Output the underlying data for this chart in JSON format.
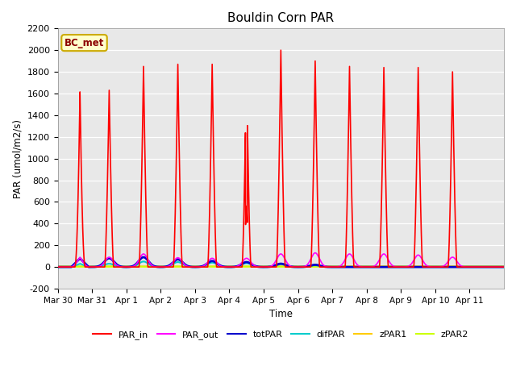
{
  "title": "Bouldin Corn PAR",
  "ylabel": "PAR (umol/m2/s)",
  "xlabel": "Time",
  "ylim": [
    -200,
    2200
  ],
  "yticks": [
    -200,
    0,
    200,
    400,
    600,
    800,
    1000,
    1200,
    1400,
    1600,
    1800,
    2000,
    2200
  ],
  "background_color": "#e8e8e8",
  "legend_label": "BC_met",
  "legend_bg": "#ffffcc",
  "legend_border": "#ccaa00",
  "series_colors": {
    "PAR_in": "#ff0000",
    "PAR_out": "#ff00ff",
    "totPAR": "#0000cc",
    "difPAR": "#00cccc",
    "zPAR1": "#ffcc00",
    "zPAR2": "#ccff00"
  },
  "days": [
    "Mar 30",
    "Mar 31",
    "Apr 1",
    "Apr 2",
    "Apr 3",
    "Apr 4",
    "Apr 5",
    "Apr 6",
    "Apr 7",
    "Apr 8",
    "Apr 9",
    "Apr 10",
    "Apr 11"
  ],
  "n_days": 13,
  "par_in_peaks": [
    1630,
    1850,
    1870,
    1870,
    1870,
    2000,
    1900,
    1850,
    1840,
    1840,
    1800,
    1550
  ],
  "par_out_peaks": [
    90,
    120,
    85,
    80,
    80,
    120,
    130,
    120,
    120,
    110,
    90,
    80
  ],
  "tot_par_peaks": [
    80,
    90,
    70,
    55,
    45,
    30,
    20,
    0,
    0,
    0,
    0,
    0
  ],
  "dif_par_peaks": [
    30,
    50,
    45,
    40,
    35,
    25,
    15,
    0,
    0,
    0,
    0,
    0
  ],
  "zpar1_val": 5,
  "zpar2_val": 3
}
